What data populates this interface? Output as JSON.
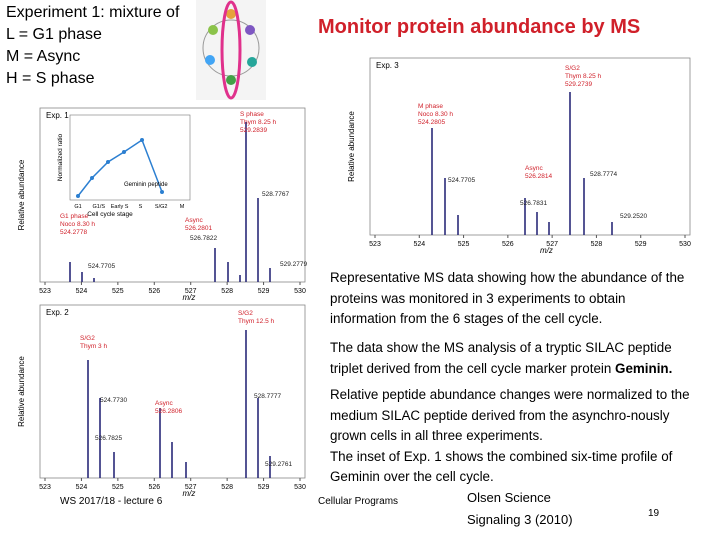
{
  "header": {
    "intro": [
      "Experiment 1: mixture of",
      "L = G1 phase",
      "M = Async",
      "H = S phase"
    ],
    "title": "Monitor protein abundance by MS"
  },
  "panels": [
    {
      "label": "Exp. 1",
      "y_axis": "Relative abundance",
      "x_axis": "m/z",
      "xticks": [
        "523",
        "524",
        "525",
        "526",
        "527",
        "528",
        "529",
        "530"
      ],
      "annotations": [
        {
          "lines": [
            "G1 phase",
            "Noco 8.30 h",
            "524.2778"
          ],
          "color": "red"
        },
        {
          "lines": [
            "Async",
            "526.2801"
          ],
          "color": "red"
        },
        {
          "lines": [
            "S phase",
            "Thym 8.25 h",
            "529.2839"
          ],
          "color": "red"
        },
        {
          "lines": [
            "524.7705"
          ],
          "color": "black"
        },
        {
          "lines": [
            "526.7822"
          ],
          "color": "black"
        },
        {
          "lines": [
            "528.7767"
          ],
          "color": "black"
        },
        {
          "lines": [
            "529.2779"
          ],
          "color": "black"
        }
      ],
      "inset": {
        "y_axis": "Normalized ratio",
        "x_axis": "Cell cycle stage",
        "legend": "Geminin peptide",
        "xticks": [
          "G1",
          "G1/S",
          "Early S",
          "S",
          "S/G2",
          "M"
        ]
      }
    },
    {
      "label": "Exp. 3",
      "y_axis": "Relative abundance",
      "x_axis": "m/z",
      "xticks": [
        "523",
        "524",
        "525",
        "526",
        "527",
        "528",
        "529",
        "530"
      ],
      "annotations": [
        {
          "lines": [
            "M phase",
            "Noco 8.30 h",
            "524.2805"
          ],
          "color": "red"
        },
        {
          "lines": [
            "Async",
            "526.2814"
          ],
          "color": "red"
        },
        {
          "lines": [
            "S/G2",
            "Thym 8.25 h",
            "529.2739"
          ],
          "color": "red"
        },
        {
          "lines": [
            "524.7705"
          ],
          "color": "black"
        },
        {
          "lines": [
            "526.7831"
          ],
          "color": "black"
        },
        {
          "lines": [
            "528.7774"
          ],
          "color": "black"
        },
        {
          "lines": [
            "529.2520"
          ],
          "color": "black"
        }
      ]
    },
    {
      "label": "Exp. 2",
      "y_axis": "Relative abundance",
      "x_axis": "m/z",
      "xticks": [
        "523",
        "524",
        "525",
        "526",
        "527",
        "528",
        "529",
        "530"
      ],
      "annotations": [
        {
          "lines": [
            "S/G2",
            "Thym 3 h"
          ],
          "color": "red"
        },
        {
          "lines": [
            "Async",
            "526.2806"
          ],
          "color": "red"
        },
        {
          "lines": [
            "S/G2",
            "Thym 12.5 h"
          ],
          "color": "red"
        },
        {
          "lines": [
            "524.7730"
          ],
          "color": "black"
        },
        {
          "lines": [
            "526.7825"
          ],
          "color": "black"
        },
        {
          "lines": [
            "528.7777"
          ],
          "color": "black"
        },
        {
          "lines": [
            "529.2761"
          ],
          "color": "black"
        }
      ]
    }
  ],
  "paragraphs": [
    {
      "text": "Representative MS data showing how the abundance of the proteins was monitored in 3 experiments to obtain information from the 6 stages of the cell cycle."
    },
    {
      "text": "The data show the MS analysis of a tryptic SILAC peptide triplet derived from the cell cycle marker protein ",
      "bold": "Geminin."
    },
    {
      "text": "Relative peptide abundance changes were normalized to the medium SILAC peptide derived from the asynchro-nously grown cells in all three experiments.",
      "text2": "The inset of Exp. 1 shows the combined six-time profile of Geminin over the cell cycle."
    }
  ],
  "footer": {
    "lecture": "WS 2017/18 - lecture 6",
    "course": "Cellular Programs",
    "reference": [
      "Olsen Science",
      "Signaling 3 (2010)"
    ],
    "page": "19"
  }
}
